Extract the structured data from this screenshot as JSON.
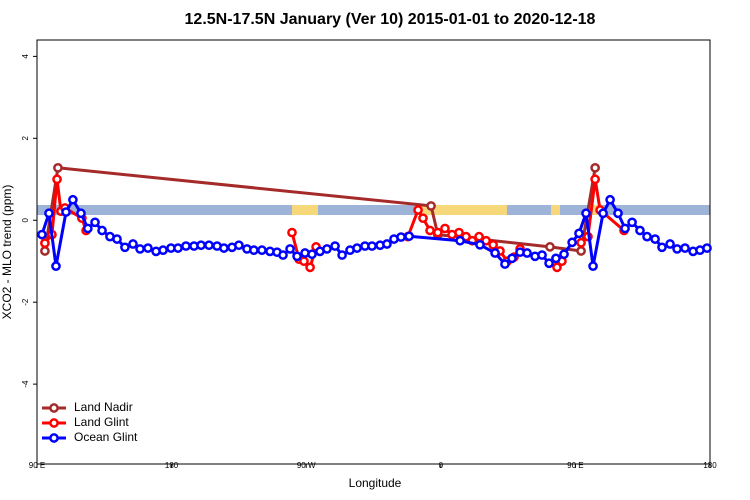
{
  "chart_data": {
    "type": "line",
    "title": "12.5N-17.5N January (Ver 10)   2015-01-01 to 2020-12-18",
    "x_label": "Longitude",
    "y_label": "XCO2 - MLO trend (ppm)",
    "xlim": [
      90,
      540
    ],
    "ylim": [
      -5.95,
      4.4
    ],
    "xticks": [
      {
        "value": 90,
        "label": "90 E"
      },
      {
        "value": 180,
        "label": "180"
      },
      {
        "value": 270,
        "label": "90 W"
      },
      {
        "value": 360,
        "label": "0"
      },
      {
        "value": 450,
        "label": "90 E"
      },
      {
        "value": 540,
        "label": "180"
      }
    ],
    "yticks": [
      4,
      2,
      0,
      -2,
      -4
    ],
    "legend": "bottom-left",
    "series": [
      {
        "name": "Land Nadir",
        "color": "#a52a2a",
        "x": [
          95.3,
          104,
          353.5,
          358,
          433,
          453.8,
          463.2
        ],
        "values": [
          -0.75,
          1.28,
          0.35,
          -0.35,
          -0.65,
          -0.75,
          1.28
        ]
      },
      {
        "name": "Land Glint",
        "color": "#ff0000",
        "x": [
          95.3,
          100,
          103.4,
          106,
          108.7,
          120,
          122.8,
          130,
          260.5,
          265.2,
          268.5,
          272.6,
          276.6,
          300,
          338,
          344.8,
          348.1,
          352.8,
          358,
          362.8,
          367.5,
          372.2,
          376.9,
          381,
          385.6,
          390.3,
          395,
          399.6,
          404.4,
          409,
          413,
          425,
          437.7,
          441,
          447,
          453.8,
          458.4,
          463.2,
          466.5,
          482.5
        ],
        "values": [
          -0.56,
          -0.35,
          1.0,
          0.22,
          0.3,
          0.05,
          -0.25,
          null,
          -0.3,
          -0.95,
          -1.0,
          -1.15,
          -0.65,
          null,
          -0.4,
          0.25,
          0.05,
          -0.25,
          -0.3,
          -0.2,
          -0.35,
          -0.3,
          -0.4,
          -0.5,
          -0.4,
          -0.5,
          -0.6,
          -0.75,
          -1.0,
          -0.9,
          -0.7,
          null,
          -1.15,
          -1.0,
          null,
          -0.55,
          -0.4,
          1.0,
          0.25,
          -0.25
        ]
      },
      {
        "name": "Ocean Glint",
        "color": "#0000ff",
        "x": [
          93.3,
          98,
          102.7,
          109.4,
          114,
          119.4,
          124,
          128.8,
          133.5,
          138.8,
          143.5,
          148.8,
          154.2,
          158.9,
          164.2,
          169.6,
          174.3,
          179.6,
          184.3,
          189.6,
          195,
          199.7,
          205,
          210.4,
          215,
          220.4,
          225,
          230.4,
          235,
          240.4,
          245.8,
          250.5,
          254.5,
          259.2,
          263.9,
          269.2,
          273.9,
          279.2,
          283.9,
          289.3,
          294,
          299.3,
          304,
          309.3,
          314,
          319.4,
          324,
          328.7,
          333.4,
          338.8,
          372.9,
          386.2,
          396.3,
          402.9,
          407.6,
          413,
          417.7,
          423,
          427.7,
          432.4,
          437,
          442.4,
          447.8,
          452.4,
          457.1,
          461.8,
          468.5,
          473.2,
          478.5,
          483.2,
          487.9,
          493.2,
          497.9,
          503.3,
          507.9,
          513.3,
          518,
          523.3,
          528.7,
          533.3,
          538
        ],
        "values": [
          -0.35,
          0.17,
          -1.12,
          0.2,
          0.5,
          0.17,
          -0.2,
          -0.05,
          -0.25,
          -0.4,
          -0.46,
          -0.66,
          -0.58,
          -0.7,
          -0.68,
          -0.76,
          -0.73,
          -0.68,
          -0.68,
          -0.63,
          -0.63,
          -0.61,
          -0.61,
          -0.63,
          -0.68,
          -0.66,
          -0.61,
          -0.7,
          -0.73,
          -0.73,
          -0.76,
          -0.78,
          -0.85,
          -0.7,
          -0.88,
          -0.8,
          -0.83,
          -0.76,
          -0.7,
          -0.63,
          -0.85,
          -0.73,
          -0.68,
          -0.63,
          -0.63,
          -0.61,
          -0.58,
          -0.46,
          -0.41,
          -0.39,
          -0.5,
          -0.6,
          -0.8,
          -1.07,
          -0.93,
          -0.78,
          -0.8,
          -0.88,
          -0.85,
          -1.05,
          -0.93,
          -0.83,
          -0.54,
          -0.32,
          0.17,
          -1.12,
          0.17,
          0.5,
          0.17,
          -0.2,
          -0.05,
          -0.25,
          -0.4,
          -0.46,
          -0.66,
          -0.58,
          -0.7,
          -0.68,
          -0.76,
          -0.73,
          -0.68
        ]
      }
    ]
  }
}
